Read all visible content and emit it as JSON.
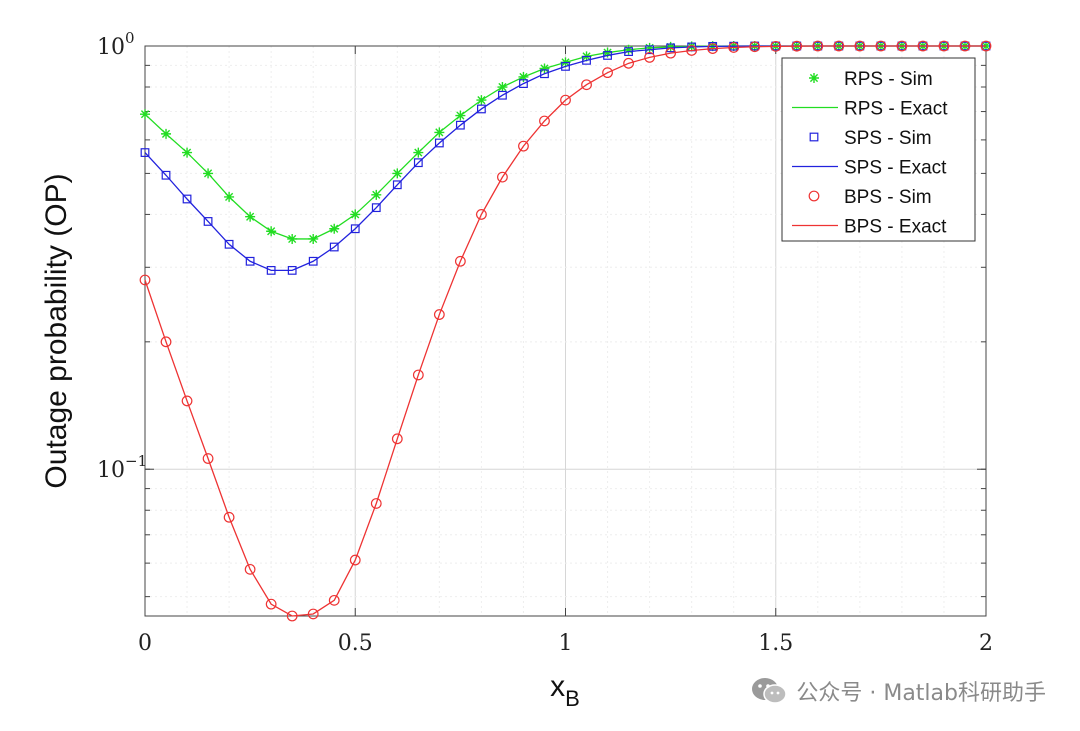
{
  "chart_data": {
    "type": "line",
    "title": "",
    "xlabel": "x",
    "xlabel_sub": "B",
    "ylabel": "Outage probability (OP)",
    "xlim": [
      0,
      2
    ],
    "ylim": [
      0.045,
      1
    ],
    "yscale": "log",
    "grid": true,
    "legend_position": "top-right",
    "x_ticks": [
      {
        "value": 0,
        "label": "0"
      },
      {
        "value": 0.5,
        "label": "0.5"
      },
      {
        "value": 1,
        "label": "1"
      },
      {
        "value": 1.5,
        "label": "1.5"
      },
      {
        "value": 2,
        "label": "2"
      }
    ],
    "y_ticks": [
      {
        "value": 1,
        "base": "10",
        "exp": "0"
      },
      {
        "value": 0.1,
        "base": "10",
        "exp": "−1"
      }
    ],
    "x": [
      0,
      0.05,
      0.1,
      0.15,
      0.2,
      0.25,
      0.3,
      0.35,
      0.4,
      0.45,
      0.5,
      0.55,
      0.6,
      0.65,
      0.7,
      0.75,
      0.8,
      0.85,
      0.9,
      0.95,
      1.0,
      1.05,
      1.1,
      1.15,
      1.2,
      1.25,
      1.3,
      1.35,
      1.4,
      1.45,
      1.5,
      1.55,
      1.6,
      1.65,
      1.7,
      1.75,
      1.8,
      1.85,
      1.9,
      1.95,
      2.0
    ],
    "series": [
      {
        "name_sim": "RPS - Sim",
        "name_exact": "RPS - Exact",
        "color": "#22dd22",
        "marker": "star",
        "values": [
          0.69,
          0.62,
          0.56,
          0.5,
          0.44,
          0.395,
          0.365,
          0.35,
          0.35,
          0.37,
          0.4,
          0.445,
          0.5,
          0.56,
          0.625,
          0.685,
          0.745,
          0.8,
          0.845,
          0.885,
          0.915,
          0.945,
          0.965,
          0.98,
          0.99,
          0.995,
          0.998,
          0.999,
          1,
          1,
          1,
          1,
          1,
          1,
          1,
          1,
          1,
          1,
          1,
          1,
          1
        ]
      },
      {
        "name_sim": "SPS - Sim",
        "name_exact": "SPS - Exact",
        "color": "#2222dd",
        "marker": "square",
        "values": [
          0.56,
          0.495,
          0.435,
          0.385,
          0.34,
          0.31,
          0.295,
          0.295,
          0.31,
          0.335,
          0.37,
          0.415,
          0.47,
          0.53,
          0.59,
          0.65,
          0.71,
          0.765,
          0.815,
          0.86,
          0.895,
          0.925,
          0.95,
          0.97,
          0.98,
          0.99,
          0.995,
          0.998,
          0.999,
          1,
          1,
          1,
          1,
          1,
          1,
          1,
          1,
          1,
          1,
          1,
          1
        ]
      },
      {
        "name_sim": "BPS - Sim",
        "name_exact": "BPS - Exact",
        "color": "#ee3333",
        "marker": "circle",
        "values": [
          0.28,
          0.2,
          0.145,
          0.106,
          0.077,
          0.058,
          0.048,
          0.045,
          0.0455,
          0.049,
          0.061,
          0.083,
          0.118,
          0.167,
          0.232,
          0.31,
          0.4,
          0.49,
          0.58,
          0.665,
          0.745,
          0.81,
          0.865,
          0.91,
          0.94,
          0.962,
          0.976,
          0.986,
          0.992,
          0.996,
          0.998,
          0.999,
          1,
          1,
          1,
          1,
          1,
          1,
          1,
          1,
          1
        ]
      }
    ]
  },
  "watermark": {
    "text": "公众号 · Matlab科研助手",
    "icon": "wechat-icon"
  }
}
